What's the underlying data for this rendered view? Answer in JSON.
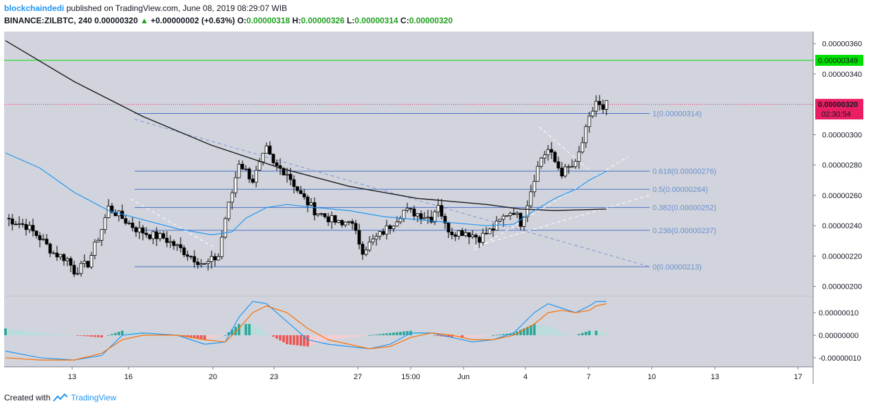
{
  "header": {
    "author": "blockchaindedi",
    "published": "published on TradingView.com, June 08, 2019 08:29:07 WIB",
    "symbol": "BINANCE:ZILBTC, 240",
    "last": "0.00000320",
    "change": "+0.00000002 (+0.63%)",
    "o_label": "O:",
    "o": "0.00000318",
    "h_label": "H:",
    "h": "0.00000326",
    "l_label": "L:",
    "l": "0.00000314",
    "c_label": "C:",
    "c": "0.00000320"
  },
  "footer": {
    "created": "Created with",
    "brand": "TradingView"
  },
  "colors": {
    "pane_bg": "#d1d4dc",
    "up_body": "#ffffff",
    "down_body": "#000000",
    "ma_long": "#1a1a1a",
    "ma_short": "#2196f3",
    "fib": "#4a6fc8",
    "resistance": "#00e000",
    "price_marker": "#e91e63",
    "macd": "#2196f3",
    "signal": "#ff6d00",
    "hist_up_strong": "#26a69a",
    "hist_up_weak": "#b2dfdb",
    "hist_down_strong": "#ef5350",
    "hist_down_weak": "#ffcdd2"
  },
  "chart_data": {
    "type": "candlestick",
    "price_axis": {
      "range": [
        1.94e-06,
        3.68e-06
      ],
      "ticks": [
        "0.00000360",
        "0.00000340",
        "0.00000300",
        "0.00000280",
        "0.00000260",
        "0.00000240",
        "0.00000220",
        "0.00000200"
      ]
    },
    "time_axis": {
      "ticks": [
        "13",
        "16",
        "20",
        "23",
        "27",
        "15:00",
        "Jun",
        "4",
        "7",
        "10",
        "13",
        "17"
      ]
    },
    "resistance": {
      "value": 3.49e-06,
      "label": "0.00000349"
    },
    "last_price": {
      "value": 3.2e-06,
      "label": "0.00000320",
      "countdown": "02:30:54"
    },
    "fib_levels": [
      {
        "ratio": "1",
        "value": 3.14e-06,
        "label": "1(0.00000314)"
      },
      {
        "ratio": "0.618",
        "value": 2.76e-06,
        "label": "0.618(0.00000276)"
      },
      {
        "ratio": "0.5",
        "value": 2.64e-06,
        "label": "0.5(0.00000264)"
      },
      {
        "ratio": "0.382",
        "value": 2.52e-06,
        "label": "0.382(0.00000252)"
      },
      {
        "ratio": "0.236",
        "value": 2.37e-06,
        "label": "0.236(0.00000237)"
      },
      {
        "ratio": "0",
        "value": 2.13e-06,
        "label": "0(0.00000213)"
      }
    ],
    "close_path": [
      [
        0,
        2.45e-06
      ],
      [
        6,
        2.4e-06
      ],
      [
        10,
        2.32e-06
      ],
      [
        14,
        2.22e-06
      ],
      [
        18,
        2.18e-06
      ],
      [
        20,
        2.1e-06
      ],
      [
        24,
        2.15e-06
      ],
      [
        28,
        2.38e-06
      ],
      [
        30,
        2.52e-06
      ],
      [
        34,
        2.45e-06
      ],
      [
        38,
        2.38e-06
      ],
      [
        42,
        2.34e-06
      ],
      [
        46,
        2.32e-06
      ],
      [
        50,
        2.26e-06
      ],
      [
        54,
        2.2e-06
      ],
      [
        58,
        2.14e-06
      ],
      [
        62,
        2.2e-06
      ],
      [
        64,
        2.45e-06
      ],
      [
        66,
        2.62e-06
      ],
      [
        68,
        2.82e-06
      ],
      [
        72,
        2.7e-06
      ],
      [
        76,
        2.9e-06
      ],
      [
        78,
        2.8e-06
      ],
      [
        82,
        2.75e-06
      ],
      [
        86,
        2.6e-06
      ],
      [
        90,
        2.5e-06
      ],
      [
        94,
        2.45e-06
      ],
      [
        98,
        2.4e-06
      ],
      [
        100,
        2.45e-06
      ],
      [
        104,
        2.24e-06
      ],
      [
        108,
        2.32e-06
      ],
      [
        112,
        2.4e-06
      ],
      [
        116,
        2.5e-06
      ],
      [
        120,
        2.48e-06
      ],
      [
        124,
        2.45e-06
      ],
      [
        126,
        2.55e-06
      ],
      [
        128,
        2.4e-06
      ],
      [
        130,
        2.36e-06
      ],
      [
        134,
        2.36e-06
      ],
      [
        138,
        2.32e-06
      ],
      [
        142,
        2.38e-06
      ],
      [
        146,
        2.48e-06
      ],
      [
        148,
        2.5e-06
      ],
      [
        150,
        2.42e-06
      ],
      [
        152,
        2.55e-06
      ],
      [
        154,
        2.72e-06
      ],
      [
        156,
        2.85e-06
      ],
      [
        158,
        2.9e-06
      ],
      [
        160,
        2.82e-06
      ],
      [
        162,
        2.75e-06
      ],
      [
        164,
        2.78e-06
      ],
      [
        166,
        2.8e-06
      ],
      [
        168,
        2.95e-06
      ],
      [
        170,
        3.1e-06
      ],
      [
        172,
        3.22e-06
      ],
      [
        174,
        3.15e-06
      ],
      [
        175,
        3.2e-06
      ]
    ],
    "ma_long": [
      [
        0,
        3.62e-06
      ],
      [
        20,
        3.35e-06
      ],
      [
        40,
        3.12e-06
      ],
      [
        60,
        2.93e-06
      ],
      [
        80,
        2.78e-06
      ],
      [
        100,
        2.66e-06
      ],
      [
        120,
        2.58e-06
      ],
      [
        140,
        2.54e-06
      ],
      [
        150,
        2.51e-06
      ],
      [
        160,
        2.5e-06
      ],
      [
        175,
        2.51e-06
      ]
    ],
    "ma_short": [
      [
        0,
        2.88e-06
      ],
      [
        10,
        2.78e-06
      ],
      [
        20,
        2.62e-06
      ],
      [
        30,
        2.5e-06
      ],
      [
        40,
        2.44e-06
      ],
      [
        50,
        2.38e-06
      ],
      [
        60,
        2.34e-06
      ],
      [
        66,
        2.36e-06
      ],
      [
        70,
        2.45e-06
      ],
      [
        76,
        2.52e-06
      ],
      [
        82,
        2.54e-06
      ],
      [
        90,
        2.52e-06
      ],
      [
        100,
        2.5e-06
      ],
      [
        110,
        2.46e-06
      ],
      [
        120,
        2.44e-06
      ],
      [
        130,
        2.42e-06
      ],
      [
        140,
        2.4e-06
      ],
      [
        148,
        2.41e-06
      ],
      [
        154,
        2.5e-06
      ],
      [
        160,
        2.58e-06
      ],
      [
        166,
        2.64e-06
      ],
      [
        170,
        2.7e-06
      ],
      [
        175,
        2.76e-06
      ]
    ],
    "macd_axis": {
      "range": [
        -1.4e-07,
        1.7e-07
      ],
      "ticks": [
        "0.00000010",
        "0.00000000",
        "-0.00000010"
      ]
    },
    "macd_line": [
      [
        0,
        -7e-08
      ],
      [
        10,
        -1e-07
      ],
      [
        20,
        -1.1e-07
      ],
      [
        28,
        -9e-08
      ],
      [
        34,
        0.0
      ],
      [
        40,
        1e-08
      ],
      [
        50,
        0.0
      ],
      [
        58,
        -4e-08
      ],
      [
        64,
        -3e-08
      ],
      [
        68,
        8e-08
      ],
      [
        72,
        1.5e-07
      ],
      [
        76,
        1.4e-07
      ],
      [
        82,
        6e-08
      ],
      [
        88,
        -2e-08
      ],
      [
        94,
        -4e-08
      ],
      [
        100,
        -5e-08
      ],
      [
        106,
        -6e-08
      ],
      [
        112,
        -4e-08
      ],
      [
        118,
        1e-08
      ],
      [
        124,
        1e-08
      ],
      [
        130,
        -1e-08
      ],
      [
        136,
        -3e-08
      ],
      [
        142,
        -2e-08
      ],
      [
        148,
        1e-08
      ],
      [
        154,
        1e-07
      ],
      [
        158,
        1.4e-07
      ],
      [
        162,
        1.2e-07
      ],
      [
        166,
        1e-07
      ],
      [
        170,
        1.3e-07
      ],
      [
        172,
        1.5e-07
      ],
      [
        175,
        1.5e-07
      ]
    ],
    "signal_line": [
      [
        0,
        -1e-07
      ],
      [
        10,
        -1.1e-07
      ],
      [
        20,
        -1.1e-07
      ],
      [
        28,
        -8e-08
      ],
      [
        34,
        -2e-08
      ],
      [
        40,
        0.0
      ],
      [
        50,
        0.0
      ],
      [
        58,
        -2e-08
      ],
      [
        64,
        -3e-08
      ],
      [
        68,
        3e-08
      ],
      [
        72,
        1e-07
      ],
      [
        76,
        1.3e-07
      ],
      [
        82,
        1e-07
      ],
      [
        88,
        3e-08
      ],
      [
        94,
        -2e-08
      ],
      [
        100,
        -4e-08
      ],
      [
        106,
        -6e-08
      ],
      [
        112,
        -5e-08
      ],
      [
        118,
        -1e-08
      ],
      [
        124,
        1e-08
      ],
      [
        130,
        0.0
      ],
      [
        136,
        -2e-08
      ],
      [
        142,
        -2e-08
      ],
      [
        148,
        0.0
      ],
      [
        154,
        5e-08
      ],
      [
        158,
        1e-07
      ],
      [
        162,
        1.1e-07
      ],
      [
        166,
        1e-07
      ],
      [
        170,
        1.1e-07
      ],
      [
        172,
        1.3e-07
      ],
      [
        175,
        1.4e-07
      ]
    ]
  }
}
